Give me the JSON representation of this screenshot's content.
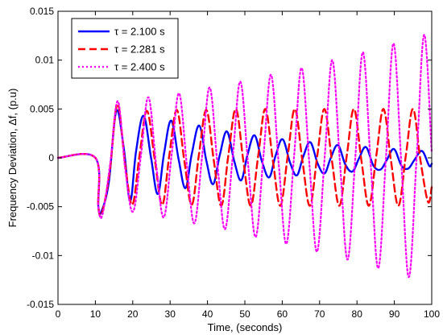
{
  "chart_data": {
    "type": "line",
    "title": "",
    "xlabel": "Time, (seconds)",
    "ylabel": "Frequency Deviation, Δf, (p.u)",
    "xlim": [
      0,
      100
    ],
    "ylim": [
      -0.015,
      0.015
    ],
    "x_ticks": [
      0,
      10,
      20,
      30,
      40,
      50,
      60,
      70,
      80,
      90,
      100
    ],
    "x_tick_labels": [
      "0",
      "10",
      "20",
      "30",
      "40",
      "50",
      "60",
      "70",
      "80",
      "90",
      "100"
    ],
    "y_ticks": [
      -0.015,
      -0.01,
      -0.005,
      0,
      0.005,
      0.01,
      0.015
    ],
    "y_tick_labels": [
      "-0.015",
      "-0.01",
      "-0.005",
      "0",
      "0.005",
      "0.01",
      "0.015"
    ],
    "grid": false,
    "legend_position": "top-left",
    "series": [
      {
        "name": "τ = 2.100 s",
        "color": "#0000ff",
        "dash": "solid",
        "x": [
          0,
          10,
          10.8,
          11.6,
          13.6,
          15.6,
          17.6,
          19.3,
          20.9,
          22.9,
          24.9,
          26.7,
          28.4,
          30.3,
          32.3,
          34.1,
          35.8,
          37.8,
          39.7,
          41.5,
          43.3,
          45.2,
          47.2,
          49.0,
          50.7,
          52.6,
          54.6,
          56.5,
          58.2,
          60.1,
          62.1,
          63.9,
          65.6,
          67.5,
          69.5,
          71.3,
          73.0,
          74.9,
          76.9,
          78.8,
          80.5,
          82.4,
          84.4,
          86.3,
          88.0,
          89.9,
          91.9,
          93.7,
          95.4,
          97.4,
          99.3,
          100
        ],
        "y": [
          0,
          0,
          -0.005,
          -0.0055,
          -0.0025,
          0.0048,
          0.001,
          -0.0044,
          0.0007,
          0.0043,
          0.0,
          -0.0037,
          0.0005,
          0.0038,
          -0.0002,
          -0.0031,
          0.0004,
          0.0033,
          -0.0003,
          -0.0027,
          0.0003,
          0.0027,
          -0.0004,
          -0.0023,
          0.0003,
          0.0023,
          -0.0004,
          -0.002,
          0.0002,
          0.0019,
          -0.0005,
          -0.0018,
          0.0001,
          0.0016,
          -0.0006,
          -0.0016,
          0.0,
          0.0013,
          -0.0007,
          -0.0014,
          -0.0001,
          0.0011,
          -0.0008,
          -0.0012,
          -0.0002,
          0.0009,
          -0.0008,
          -0.0011,
          -0.0002,
          0.0007,
          -0.0008,
          -0.0006
        ]
      },
      {
        "name": "τ = 2.281 s",
        "color": "#ff0000",
        "dash": "dashed",
        "x": [
          0,
          10,
          10.8,
          11.8,
          13.8,
          15.9,
          18.0,
          19.9,
          21.8,
          23.8,
          25.9,
          27.9,
          29.8,
          31.8,
          33.8,
          35.8,
          37.7,
          39.7,
          41.7,
          43.7,
          45.6,
          47.6,
          49.6,
          51.6,
          53.6,
          55.5,
          57.5,
          59.5,
          61.5,
          63.4,
          65.4,
          67.4,
          69.4,
          71.3,
          73.3,
          75.3,
          77.3,
          79.2,
          81.2,
          83.2,
          85.2,
          87.1,
          89.1,
          91.1,
          93.1,
          95.0,
          97.0,
          99.0,
          100
        ],
        "y": [
          0,
          0,
          -0.005,
          -0.0056,
          -0.0015,
          0.0055,
          -0.0008,
          -0.0048,
          0.0002,
          0.0048,
          -0.0002,
          -0.0048,
          0.0003,
          0.0049,
          -0.0003,
          -0.0048,
          0.0003,
          0.0049,
          -0.0003,
          -0.0049,
          0.0003,
          0.005,
          -0.0003,
          -0.0049,
          0.0003,
          0.005,
          -0.0003,
          -0.0049,
          0.0003,
          0.005,
          -0.0003,
          -0.0049,
          0.0003,
          0.005,
          -0.0003,
          -0.0049,
          0.0003,
          0.005,
          -0.0003,
          -0.0049,
          0.0003,
          0.005,
          -0.0003,
          -0.0049,
          0.0003,
          0.005,
          -0.0003,
          -0.0045,
          -0.003
        ]
      },
      {
        "name": "τ = 2.400 s",
        "color": "#ff00ff",
        "dash": "dotted",
        "x": [
          0,
          10,
          10.8,
          11.9,
          14.0,
          16.0,
          18.1,
          20.1,
          22.2,
          24.2,
          26.3,
          28.3,
          30.4,
          32.4,
          34.5,
          36.5,
          38.6,
          40.6,
          42.7,
          44.7,
          46.8,
          48.8,
          50.9,
          52.9,
          55.0,
          57.0,
          59.1,
          61.1,
          63.2,
          65.2,
          67.3,
          69.3,
          71.4,
          73.4,
          75.5,
          77.5,
          79.6,
          81.6,
          83.7,
          85.7,
          87.8,
          89.8,
          91.9,
          93.9,
          96.0,
          98.0,
          100
        ],
        "y": [
          0,
          0,
          -0.005,
          -0.0058,
          -0.0005,
          0.0058,
          -0.0015,
          -0.0055,
          0.0003,
          0.0062,
          -0.0008,
          -0.0061,
          0.0003,
          0.0066,
          -0.0008,
          -0.0067,
          0.0003,
          0.0072,
          -0.0008,
          -0.0073,
          0.0003,
          0.0078,
          -0.0008,
          -0.0081,
          0.0003,
          0.0085,
          -0.0008,
          -0.0088,
          0.0003,
          0.0092,
          -0.0008,
          -0.0096,
          0.0003,
          0.01,
          -0.0008,
          -0.0104,
          0.0003,
          0.0108,
          -0.0008,
          -0.0113,
          0.0003,
          0.0117,
          -0.0008,
          -0.0122,
          0.0003,
          0.0126,
          0.0005
        ]
      }
    ]
  }
}
